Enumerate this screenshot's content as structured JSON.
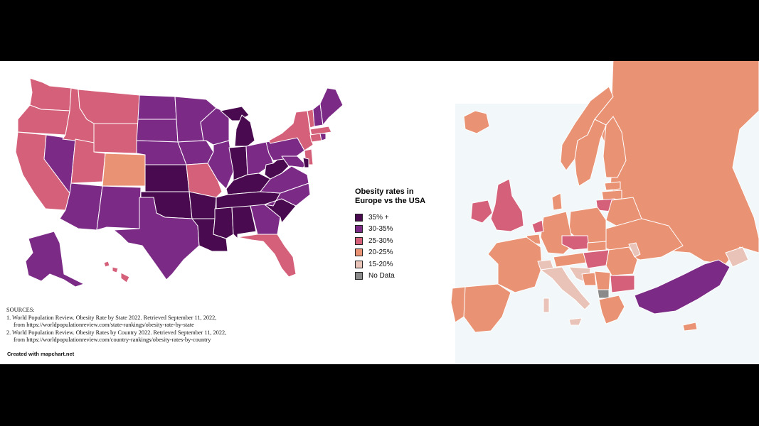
{
  "legend": {
    "title_line1": "Obesity rates in",
    "title_line2": "Europe vs the USA",
    "items": [
      {
        "label": "35% +",
        "color": "#4a0a4f"
      },
      {
        "label": "30-35%",
        "color": "#7b2a86"
      },
      {
        "label": "25-30%",
        "color": "#d5607a"
      },
      {
        "label": "20-25%",
        "color": "#e99274"
      },
      {
        "label": "15-20%",
        "color": "#e9c3b8"
      },
      {
        "label": "No Data",
        "color": "#8a8a8a"
      }
    ]
  },
  "sources": {
    "heading": "SOURCES:",
    "line1": "1. World Population Review. Obesity Rate by State 2022. Retrieved September 11, 2022,",
    "line1b": "from https://worldpopulationreview.com/state-rankings/obesity-rate-by-state",
    "line2": "2. World Population Review. Obesity Rates by Country 2022. Retrieved September 11, 2022,",
    "line2b": "from https://worldpopulationreview.com/country-rankings/obesity-rates-by-country"
  },
  "credit": "Created with mapchart.net",
  "colors": {
    "c35": "#4a0a4f",
    "c30": "#7b2a86",
    "c25": "#d5607a",
    "c20": "#e99274",
    "c15": "#e9c3b8",
    "cnd": "#8a8a8a",
    "sea": "#f2f8f9"
  }
}
